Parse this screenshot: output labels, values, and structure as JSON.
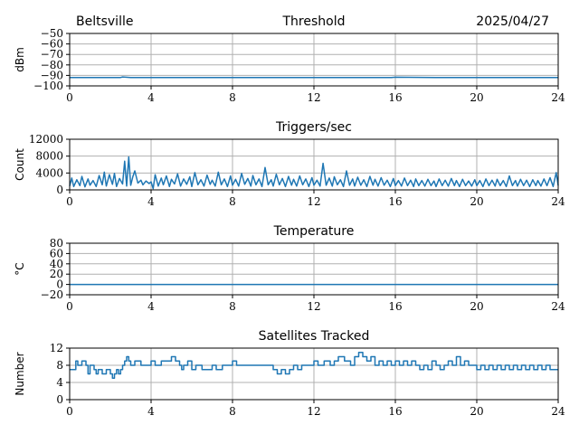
{
  "header": {
    "site": "Beltsville",
    "date": "2025/04/27"
  },
  "chart_data": [
    {
      "type": "line",
      "title": "Threshold",
      "ylabel": "dBm",
      "xlim": [
        0,
        24
      ],
      "ylim": [
        -100,
        -50
      ],
      "xticks": [
        0,
        4,
        8,
        12,
        16,
        20,
        24
      ],
      "yticks": [
        -100,
        -90,
        -80,
        -70,
        -60,
        -50
      ],
      "grid": true,
      "series": [
        {
          "color": "#1f77b4",
          "x": [
            0,
            2.5,
            2.6,
            3,
            3.2,
            6,
            8,
            10,
            12,
            14,
            15.8,
            16,
            18,
            20,
            22,
            24
          ],
          "y": [
            -92,
            -92,
            -91.5,
            -92,
            -92,
            -92,
            -92,
            -92,
            -92,
            -92,
            -92,
            -91.7,
            -92,
            -92,
            -92,
            -92
          ]
        }
      ]
    },
    {
      "type": "line",
      "title": "Triggers/sec",
      "ylabel": "Count",
      "xlim": [
        0,
        24
      ],
      "ylim": [
        0,
        12000
      ],
      "xticks": [
        0,
        4,
        8,
        12,
        16,
        20,
        24
      ],
      "yticks": [
        0,
        4000,
        8000,
        12000
      ],
      "grid": true,
      "series": [
        {
          "color": "#1f77b4",
          "x": [
            0,
            0.1,
            0.2,
            0.35,
            0.5,
            0.6,
            0.75,
            0.9,
            1.0,
            1.15,
            1.3,
            1.45,
            1.6,
            1.7,
            1.8,
            1.95,
            2.1,
            2.2,
            2.3,
            2.45,
            2.6,
            2.7,
            2.8,
            2.9,
            3.0,
            3.1,
            3.2,
            3.35,
            3.5,
            3.6,
            3.75,
            3.9,
            4.0,
            4.1,
            4.2,
            4.35,
            4.5,
            4.6,
            4.75,
            4.9,
            5.0,
            5.15,
            5.3,
            5.45,
            5.6,
            5.75,
            5.9,
            6.0,
            6.15,
            6.3,
            6.45,
            6.6,
            6.75,
            6.9,
            7.0,
            7.15,
            7.3,
            7.45,
            7.6,
            7.75,
            7.9,
            8.0,
            8.15,
            8.3,
            8.45,
            8.6,
            8.75,
            8.9,
            9.0,
            9.15,
            9.3,
            9.45,
            9.6,
            9.75,
            9.9,
            10.0,
            10.15,
            10.3,
            10.45,
            10.6,
            10.75,
            10.9,
            11.0,
            11.15,
            11.3,
            11.45,
            11.6,
            11.75,
            11.9,
            12.0,
            12.15,
            12.3,
            12.45,
            12.6,
            12.75,
            12.9,
            13.0,
            13.15,
            13.3,
            13.45,
            13.6,
            13.75,
            13.9,
            14.0,
            14.15,
            14.3,
            14.45,
            14.6,
            14.75,
            14.9,
            15.0,
            15.15,
            15.3,
            15.45,
            15.6,
            15.75,
            15.9,
            16.0,
            16.15,
            16.3,
            16.45,
            16.6,
            16.75,
            16.9,
            17.0,
            17.15,
            17.3,
            17.45,
            17.6,
            17.75,
            17.9,
            18.0,
            18.15,
            18.3,
            18.45,
            18.6,
            18.75,
            18.9,
            19.0,
            19.15,
            19.3,
            19.45,
            19.6,
            19.75,
            19.9,
            20.0,
            20.15,
            20.3,
            20.45,
            20.6,
            20.75,
            20.9,
            21.0,
            21.15,
            21.3,
            21.45,
            21.6,
            21.75,
            21.9,
            22.0,
            22.15,
            22.3,
            22.45,
            22.6,
            22.75,
            22.9,
            23.0,
            23.15,
            23.3,
            23.45,
            23.6,
            23.75,
            23.9,
            24.0
          ],
          "y": [
            900,
            2800,
            800,
            2400,
            1000,
            3200,
            700,
            2600,
            1100,
            2200,
            800,
            3400,
            1200,
            4200,
            900,
            3600,
            1300,
            3900,
            800,
            2700,
            1400,
            6800,
            900,
            7800,
            1100,
            3100,
            4500,
            1600,
            2300,
            1200,
            2100,
            1500,
            1900,
            300,
            3600,
            900,
            2800,
            1200,
            3300,
            800,
            2500,
            1400,
            3800,
            900,
            2600,
            1300,
            3100,
            800,
            4100,
            1200,
            2400,
            900,
            3500,
            1300,
            2300,
            900,
            4200,
            1200,
            2600,
            800,
            3300,
            1100,
            2500,
            900,
            3900,
            1300,
            2700,
            900,
            3400,
            1200,
            2600,
            800,
            5300,
            1200,
            2400,
            900,
            3700,
            1200,
            2700,
            800,
            3200,
            1100,
            2500,
            900,
            3300,
            1200,
            2600,
            800,
            2900,
            1100,
            2300,
            900,
            6300,
            1100,
            2800,
            900,
            3100,
            1200,
            2400,
            800,
            4500,
            1100,
            2600,
            900,
            3000,
            1100,
            2400,
            800,
            3200,
            1100,
            2500,
            900,
            2900,
            1100,
            2300,
            800,
            2700,
            1000,
            2200,
            900,
            2800,
            1000,
            2300,
            800,
            2600,
            1000,
            2200,
            900,
            2500,
            1000,
            2100,
            800,
            2600,
            1000,
            2300,
            900,
            2700,
            1000,
            2200,
            800,
            2500,
            1000,
            2100,
            900,
            2400,
            1000,
            2200,
            800,
            2600,
            1000,
            2300,
            900,
            2500,
            1000,
            2200,
            800,
            3300,
            1000,
            2200,
            900,
            2500,
            1000,
            2300,
            800,
            2400,
            1000,
            2200,
            900,
            2600,
            1000,
            2900,
            800,
            4100,
            1000
          ]
        }
      ]
    },
    {
      "type": "line",
      "title": "Temperature",
      "ylabel": "°C",
      "xlim": [
        0,
        24
      ],
      "ylim": [
        -20,
        80
      ],
      "xticks": [
        0,
        4,
        8,
        12,
        16,
        20,
        24
      ],
      "yticks": [
        -20,
        0,
        20,
        40,
        60,
        80
      ],
      "grid": true,
      "series": [
        {
          "color": "#1f77b4",
          "x": [
            0,
            6,
            12,
            18,
            24
          ],
          "y": [
            0,
            0,
            0,
            0,
            0
          ]
        }
      ]
    },
    {
      "type": "line",
      "title": "Satellites Tracked",
      "ylabel": "Number",
      "xlim": [
        0,
        24
      ],
      "ylim": [
        0,
        12
      ],
      "xticks": [
        0,
        4,
        8,
        12,
        16,
        20,
        24
      ],
      "yticks": [
        0,
        4,
        8,
        12
      ],
      "grid": true,
      "series": [
        {
          "color": "#1f77b4",
          "step": true,
          "x": [
            0,
            0.3,
            0.4,
            0.6,
            0.8,
            0.9,
            1.0,
            1.2,
            1.3,
            1.4,
            1.6,
            1.8,
            2.0,
            2.1,
            2.2,
            2.3,
            2.4,
            2.5,
            2.6,
            2.7,
            2.8,
            2.9,
            3.0,
            3.2,
            3.5,
            4.0,
            4.2,
            4.5,
            5.0,
            5.2,
            5.4,
            5.5,
            5.6,
            5.8,
            6.0,
            6.2,
            6.5,
            7.0,
            7.2,
            7.5,
            7.8,
            8.0,
            8.2,
            8.5,
            9.0,
            10.0,
            10.2,
            10.4,
            10.6,
            10.8,
            11.0,
            11.2,
            11.4,
            11.6,
            11.8,
            12.0,
            12.2,
            12.5,
            12.8,
            13.0,
            13.2,
            13.5,
            13.8,
            14.0,
            14.2,
            14.4,
            14.6,
            14.8,
            15.0,
            15.2,
            15.4,
            15.6,
            15.8,
            16.0,
            16.2,
            16.4,
            16.6,
            16.8,
            17.0,
            17.2,
            17.4,
            17.6,
            17.8,
            18.0,
            18.2,
            18.4,
            18.6,
            18.8,
            19.0,
            19.2,
            19.4,
            19.6,
            19.8,
            20.0,
            20.2,
            20.4,
            20.6,
            20.8,
            21.0,
            21.2,
            21.4,
            21.6,
            21.8,
            22.0,
            22.2,
            22.4,
            22.6,
            22.8,
            23.0,
            23.2,
            23.4,
            23.6,
            24.0
          ],
          "y": [
            7,
            9,
            8,
            9,
            8,
            6,
            8,
            7,
            6,
            7,
            6,
            7,
            6,
            5,
            6,
            7,
            6,
            7,
            8,
            9,
            10,
            9,
            8,
            9,
            8,
            9,
            8,
            9,
            10,
            9,
            8,
            7,
            8,
            9,
            7,
            8,
            7,
            8,
            7,
            8,
            8,
            9,
            8,
            8,
            8,
            7,
            6,
            7,
            6,
            7,
            8,
            7,
            8,
            8,
            8,
            9,
            8,
            9,
            8,
            9,
            10,
            9,
            8,
            10,
            11,
            10,
            9,
            10,
            8,
            9,
            8,
            9,
            8,
            9,
            8,
            9,
            8,
            9,
            8,
            7,
            8,
            7,
            9,
            8,
            7,
            8,
            9,
            8,
            10,
            8,
            9,
            8,
            8,
            7,
            8,
            7,
            8,
            7,
            8,
            7,
            8,
            7,
            8,
            7,
            8,
            7,
            8,
            7,
            8,
            7,
            8,
            7,
            7
          ]
        }
      ]
    }
  ]
}
